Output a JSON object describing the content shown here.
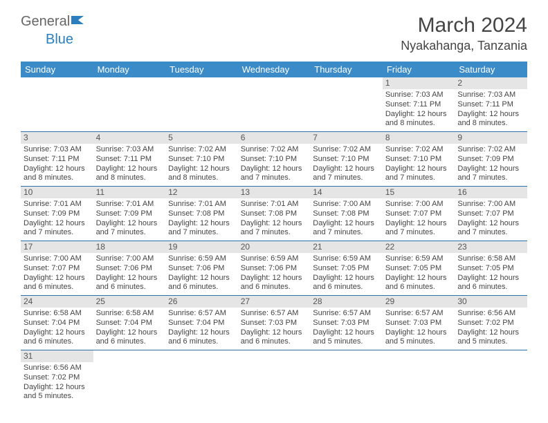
{
  "logo": {
    "text1": "General",
    "text2": "Blue"
  },
  "title": "March 2024",
  "location": "Nyakahanga, Tanzania",
  "weekdays": [
    "Sunday",
    "Monday",
    "Tuesday",
    "Wednesday",
    "Thursday",
    "Friday",
    "Saturday"
  ],
  "colors": {
    "header_bg": "#3b8bc9",
    "header_text": "#ffffff",
    "daynum_bg": "#e5e5e5",
    "row_border": "#2b6faf",
    "text": "#444444"
  },
  "typography": {
    "title_fontsize": 30,
    "location_fontsize": 18,
    "weekday_fontsize": 13,
    "cell_fontsize": 11
  },
  "first_day_column": 5,
  "days_in_month": 31,
  "days": {
    "1": {
      "sunrise": "7:03 AM",
      "sunset": "7:11 PM",
      "daylight": "12 hours and 8 minutes."
    },
    "2": {
      "sunrise": "7:03 AM",
      "sunset": "7:11 PM",
      "daylight": "12 hours and 8 minutes."
    },
    "3": {
      "sunrise": "7:03 AM",
      "sunset": "7:11 PM",
      "daylight": "12 hours and 8 minutes."
    },
    "4": {
      "sunrise": "7:03 AM",
      "sunset": "7:11 PM",
      "daylight": "12 hours and 8 minutes."
    },
    "5": {
      "sunrise": "7:02 AM",
      "sunset": "7:10 PM",
      "daylight": "12 hours and 8 minutes."
    },
    "6": {
      "sunrise": "7:02 AM",
      "sunset": "7:10 PM",
      "daylight": "12 hours and 7 minutes."
    },
    "7": {
      "sunrise": "7:02 AM",
      "sunset": "7:10 PM",
      "daylight": "12 hours and 7 minutes."
    },
    "8": {
      "sunrise": "7:02 AM",
      "sunset": "7:10 PM",
      "daylight": "12 hours and 7 minutes."
    },
    "9": {
      "sunrise": "7:02 AM",
      "sunset": "7:09 PM",
      "daylight": "12 hours and 7 minutes."
    },
    "10": {
      "sunrise": "7:01 AM",
      "sunset": "7:09 PM",
      "daylight": "12 hours and 7 minutes."
    },
    "11": {
      "sunrise": "7:01 AM",
      "sunset": "7:09 PM",
      "daylight": "12 hours and 7 minutes."
    },
    "12": {
      "sunrise": "7:01 AM",
      "sunset": "7:08 PM",
      "daylight": "12 hours and 7 minutes."
    },
    "13": {
      "sunrise": "7:01 AM",
      "sunset": "7:08 PM",
      "daylight": "12 hours and 7 minutes."
    },
    "14": {
      "sunrise": "7:00 AM",
      "sunset": "7:08 PM",
      "daylight": "12 hours and 7 minutes."
    },
    "15": {
      "sunrise": "7:00 AM",
      "sunset": "7:07 PM",
      "daylight": "12 hours and 7 minutes."
    },
    "16": {
      "sunrise": "7:00 AM",
      "sunset": "7:07 PM",
      "daylight": "12 hours and 7 minutes."
    },
    "17": {
      "sunrise": "7:00 AM",
      "sunset": "7:07 PM",
      "daylight": "12 hours and 6 minutes."
    },
    "18": {
      "sunrise": "7:00 AM",
      "sunset": "7:06 PM",
      "daylight": "12 hours and 6 minutes."
    },
    "19": {
      "sunrise": "6:59 AM",
      "sunset": "7:06 PM",
      "daylight": "12 hours and 6 minutes."
    },
    "20": {
      "sunrise": "6:59 AM",
      "sunset": "7:06 PM",
      "daylight": "12 hours and 6 minutes."
    },
    "21": {
      "sunrise": "6:59 AM",
      "sunset": "7:05 PM",
      "daylight": "12 hours and 6 minutes."
    },
    "22": {
      "sunrise": "6:59 AM",
      "sunset": "7:05 PM",
      "daylight": "12 hours and 6 minutes."
    },
    "23": {
      "sunrise": "6:58 AM",
      "sunset": "7:05 PM",
      "daylight": "12 hours and 6 minutes."
    },
    "24": {
      "sunrise": "6:58 AM",
      "sunset": "7:04 PM",
      "daylight": "12 hours and 6 minutes."
    },
    "25": {
      "sunrise": "6:58 AM",
      "sunset": "7:04 PM",
      "daylight": "12 hours and 6 minutes."
    },
    "26": {
      "sunrise": "6:57 AM",
      "sunset": "7:04 PM",
      "daylight": "12 hours and 6 minutes."
    },
    "27": {
      "sunrise": "6:57 AM",
      "sunset": "7:03 PM",
      "daylight": "12 hours and 6 minutes."
    },
    "28": {
      "sunrise": "6:57 AM",
      "sunset": "7:03 PM",
      "daylight": "12 hours and 5 minutes."
    },
    "29": {
      "sunrise": "6:57 AM",
      "sunset": "7:03 PM",
      "daylight": "12 hours and 5 minutes."
    },
    "30": {
      "sunrise": "6:56 AM",
      "sunset": "7:02 PM",
      "daylight": "12 hours and 5 minutes."
    },
    "31": {
      "sunrise": "6:56 AM",
      "sunset": "7:02 PM",
      "daylight": "12 hours and 5 minutes."
    }
  },
  "labels": {
    "sunrise_prefix": "Sunrise: ",
    "sunset_prefix": "Sunset: ",
    "daylight_prefix": "Daylight: "
  }
}
